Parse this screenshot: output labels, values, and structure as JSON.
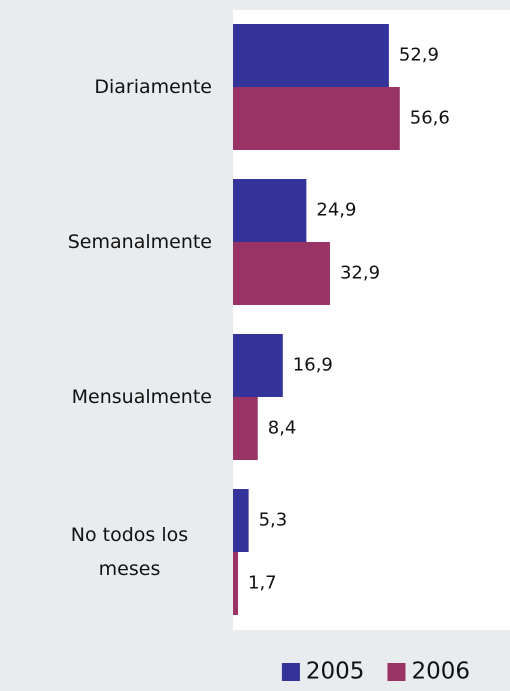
{
  "chart_data": {
    "type": "hbar",
    "categories": [
      "Diariamente",
      "Semanalmente",
      "Mensualmente",
      "No todos los meses"
    ],
    "series": [
      {
        "name": "2005",
        "color": "#333399",
        "values": [
          52.9,
          24.9,
          16.9,
          5.3
        ],
        "value_labels": [
          "52,9",
          "24,9",
          "16,9",
          "5,3"
        ]
      },
      {
        "name": "2006",
        "color": "#993366",
        "values": [
          56.6,
          32.9,
          8.4,
          1.7
        ],
        "value_labels": [
          "56,6",
          "32,9",
          "8,4",
          "1,7"
        ]
      }
    ],
    "xlim": [
      0,
      94
    ],
    "legend": "bottom-right"
  }
}
